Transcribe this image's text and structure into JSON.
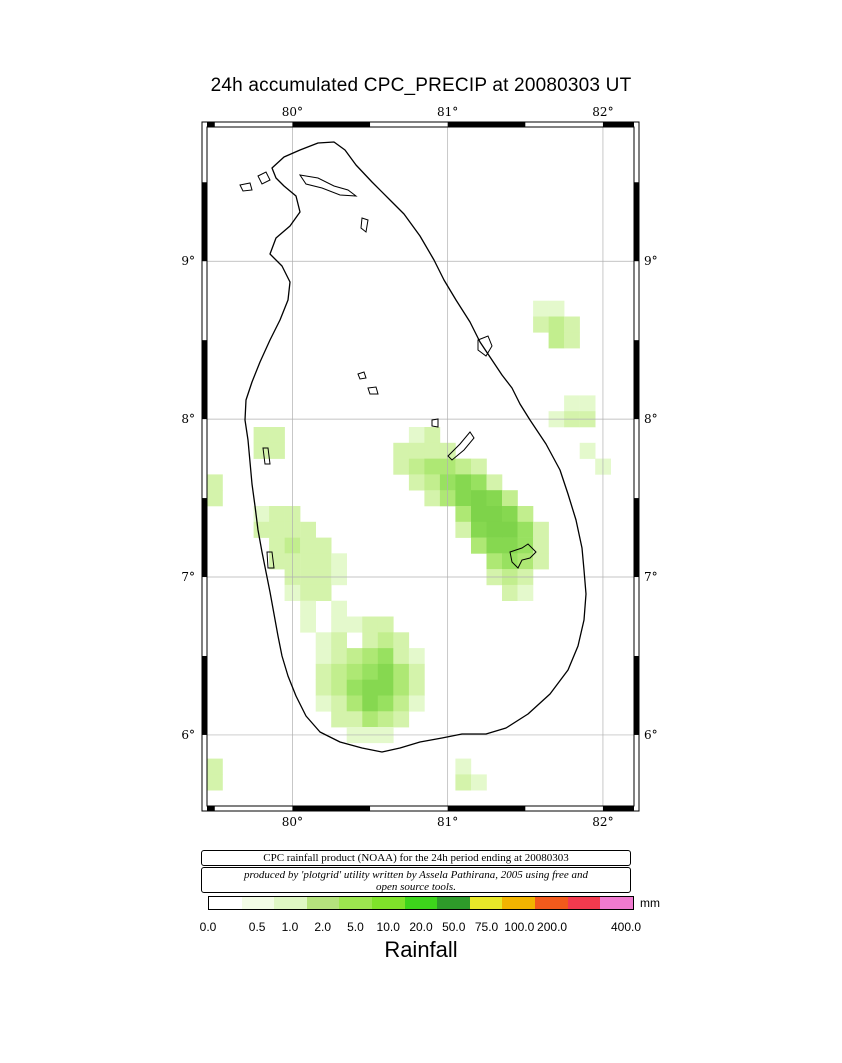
{
  "title": "24h accumulated CPC_PRECIP  at 20080303 UT",
  "axes": {
    "lon_labels": [
      "80°",
      "81°",
      "82°"
    ],
    "lat_labels": [
      "6°",
      "7°",
      "8°",
      "9°"
    ],
    "lon_values": [
      80,
      81,
      82
    ],
    "lat_values": [
      6,
      7,
      8,
      9
    ],
    "lon_range": [
      79.45,
      82.2
    ],
    "lat_range": [
      5.55,
      9.85
    ]
  },
  "info": {
    "line1": "CPC rainfall product (NOAA) for the 24h period ending at 20080303",
    "line2": "produced by 'plotgrid' utility written by Assela Pathirana, 2005 using free and open source tools."
  },
  "colorbar": {
    "unit": "mm",
    "title": "Rainfall",
    "ticks": [
      "0.0",
      "0.5",
      "1.0",
      "2.0",
      "5.0",
      "10.0",
      "20.0",
      "50.0",
      "75.0",
      "100.0",
      "200.0",
      "400.0"
    ],
    "colors": [
      "#ffffff",
      "#f3fce6",
      "#dff7c4",
      "#b5e37d",
      "#9ce64f",
      "#7fe22a",
      "#3dd41b",
      "#2e9a2a",
      "#e8e829",
      "#f2b400",
      "#f25a1c",
      "#f23a4e",
      "#f07ad0"
    ]
  },
  "chart_data": {
    "type": "heatmap",
    "title": "24h accumulated CPC_PRECIP  at 20080303 UT",
    "xlabel": "",
    "ylabel": "",
    "x_range_deg_lon": [
      79.45,
      82.2
    ],
    "y_range_deg_lat": [
      5.55,
      9.85
    ],
    "cell_size_deg": 0.1,
    "value_unit": "mm",
    "cells": [
      {
        "lon": 81.6,
        "lat": 8.7,
        "v": 0.8
      },
      {
        "lon": 81.7,
        "lat": 8.7,
        "v": 0.8
      },
      {
        "lon": 81.6,
        "lat": 8.6,
        "v": 1.5
      },
      {
        "lon": 81.7,
        "lat": 8.6,
        "v": 1.8
      },
      {
        "lon": 81.8,
        "lat": 8.6,
        "v": 1.2
      },
      {
        "lon": 81.7,
        "lat": 8.5,
        "v": 1.8
      },
      {
        "lon": 81.8,
        "lat": 8.5,
        "v": 1.5
      },
      {
        "lon": 81.8,
        "lat": 8.1,
        "v": 1.0
      },
      {
        "lon": 81.9,
        "lat": 8.1,
        "v": 1.0
      },
      {
        "lon": 81.7,
        "lat": 8.0,
        "v": 0.8
      },
      {
        "lon": 81.8,
        "lat": 8.0,
        "v": 1.2
      },
      {
        "lon": 81.9,
        "lat": 8.0,
        "v": 1.2
      },
      {
        "lon": 81.9,
        "lat": 7.8,
        "v": 1.0
      },
      {
        "lon": 82.0,
        "lat": 7.7,
        "v": 1.0
      },
      {
        "lon": 80.8,
        "lat": 7.9,
        "v": 1.0
      },
      {
        "lon": 80.9,
        "lat": 7.9,
        "v": 1.2
      },
      {
        "lon": 80.7,
        "lat": 7.8,
        "v": 1.2
      },
      {
        "lon": 80.8,
        "lat": 7.8,
        "v": 1.5
      },
      {
        "lon": 80.9,
        "lat": 7.8,
        "v": 1.5
      },
      {
        "lon": 81.0,
        "lat": 7.8,
        "v": 1.2
      },
      {
        "lon": 80.7,
        "lat": 7.7,
        "v": 1.2
      },
      {
        "lon": 80.8,
        "lat": 7.7,
        "v": 1.8
      },
      {
        "lon": 80.9,
        "lat": 7.7,
        "v": 2.0
      },
      {
        "lon": 81.0,
        "lat": 7.7,
        "v": 2.0
      },
      {
        "lon": 81.1,
        "lat": 7.7,
        "v": 1.8
      },
      {
        "lon": 81.2,
        "lat": 7.7,
        "v": 1.5
      },
      {
        "lon": 80.8,
        "lat": 7.6,
        "v": 1.5
      },
      {
        "lon": 80.9,
        "lat": 7.6,
        "v": 1.8
      },
      {
        "lon": 81.0,
        "lat": 7.6,
        "v": 2.5
      },
      {
        "lon": 81.1,
        "lat": 7.6,
        "v": 3.0
      },
      {
        "lon": 81.2,
        "lat": 7.6,
        "v": 2.5
      },
      {
        "lon": 81.3,
        "lat": 7.6,
        "v": 1.5
      },
      {
        "lon": 80.9,
        "lat": 7.5,
        "v": 1.5
      },
      {
        "lon": 81.0,
        "lat": 7.5,
        "v": 2.0
      },
      {
        "lon": 81.1,
        "lat": 7.5,
        "v": 3.0
      },
      {
        "lon": 81.2,
        "lat": 7.5,
        "v": 3.5
      },
      {
        "lon": 81.3,
        "lat": 7.5,
        "v": 3.0
      },
      {
        "lon": 81.4,
        "lat": 7.5,
        "v": 1.8
      },
      {
        "lon": 81.1,
        "lat": 7.4,
        "v": 2.0
      },
      {
        "lon": 81.2,
        "lat": 7.4,
        "v": 3.5
      },
      {
        "lon": 81.3,
        "lat": 7.4,
        "v": 3.5
      },
      {
        "lon": 81.4,
        "lat": 7.4,
        "v": 3.0
      },
      {
        "lon": 81.5,
        "lat": 7.4,
        "v": 1.8
      },
      {
        "lon": 81.1,
        "lat": 7.3,
        "v": 1.5
      },
      {
        "lon": 81.2,
        "lat": 7.3,
        "v": 3.0
      },
      {
        "lon": 81.3,
        "lat": 7.3,
        "v": 3.5
      },
      {
        "lon": 81.4,
        "lat": 7.3,
        "v": 3.5
      },
      {
        "lon": 81.5,
        "lat": 7.3,
        "v": 2.5
      },
      {
        "lon": 81.6,
        "lat": 7.3,
        "v": 1.5
      },
      {
        "lon": 81.2,
        "lat": 7.2,
        "v": 2.0
      },
      {
        "lon": 81.3,
        "lat": 7.2,
        "v": 3.0
      },
      {
        "lon": 81.4,
        "lat": 7.2,
        "v": 3.0
      },
      {
        "lon": 81.5,
        "lat": 7.2,
        "v": 2.5
      },
      {
        "lon": 81.6,
        "lat": 7.2,
        "v": 1.5
      },
      {
        "lon": 81.3,
        "lat": 7.1,
        "v": 2.0
      },
      {
        "lon": 81.4,
        "lat": 7.1,
        "v": 2.5
      },
      {
        "lon": 81.5,
        "lat": 7.1,
        "v": 2.0
      },
      {
        "lon": 81.6,
        "lat": 7.1,
        "v": 1.2
      },
      {
        "lon": 81.3,
        "lat": 7.0,
        "v": 1.5
      },
      {
        "lon": 81.4,
        "lat": 7.0,
        "v": 1.8
      },
      {
        "lon": 81.5,
        "lat": 7.0,
        "v": 1.5
      },
      {
        "lon": 81.4,
        "lat": 6.9,
        "v": 1.2
      },
      {
        "lon": 81.5,
        "lat": 6.9,
        "v": 1.0
      },
      {
        "lon": 79.8,
        "lat": 7.9,
        "v": 1.2
      },
      {
        "lon": 79.9,
        "lat": 7.9,
        "v": 1.2
      },
      {
        "lon": 79.8,
        "lat": 7.8,
        "v": 1.5
      },
      {
        "lon": 79.9,
        "lat": 7.8,
        "v": 1.2
      },
      {
        "lon": 79.5,
        "lat": 7.6,
        "v": 1.2
      },
      {
        "lon": 79.5,
        "lat": 7.5,
        "v": 1.2
      },
      {
        "lon": 79.8,
        "lat": 7.4,
        "v": 1.0
      },
      {
        "lon": 79.9,
        "lat": 7.4,
        "v": 1.2
      },
      {
        "lon": 80.0,
        "lat": 7.4,
        "v": 1.2
      },
      {
        "lon": 79.8,
        "lat": 7.3,
        "v": 1.2
      },
      {
        "lon": 79.9,
        "lat": 7.3,
        "v": 1.5
      },
      {
        "lon": 80.0,
        "lat": 7.3,
        "v": 1.5
      },
      {
        "lon": 80.1,
        "lat": 7.3,
        "v": 1.2
      },
      {
        "lon": 79.9,
        "lat": 7.2,
        "v": 1.5
      },
      {
        "lon": 80.0,
        "lat": 7.2,
        "v": 1.8
      },
      {
        "lon": 80.1,
        "lat": 7.2,
        "v": 1.5
      },
      {
        "lon": 80.2,
        "lat": 7.2,
        "v": 1.2
      },
      {
        "lon": 79.9,
        "lat": 7.1,
        "v": 1.2
      },
      {
        "lon": 80.0,
        "lat": 7.1,
        "v": 1.5
      },
      {
        "lon": 80.1,
        "lat": 7.1,
        "v": 1.5
      },
      {
        "lon": 80.2,
        "lat": 7.1,
        "v": 1.2
      },
      {
        "lon": 80.3,
        "lat": 7.1,
        "v": 1.0
      },
      {
        "lon": 80.0,
        "lat": 7.0,
        "v": 1.2
      },
      {
        "lon": 80.1,
        "lat": 7.0,
        "v": 1.5
      },
      {
        "lon": 80.2,
        "lat": 7.0,
        "v": 1.2
      },
      {
        "lon": 80.3,
        "lat": 7.0,
        "v": 1.0
      },
      {
        "lon": 80.0,
        "lat": 6.9,
        "v": 1.0
      },
      {
        "lon": 80.1,
        "lat": 6.9,
        "v": 1.2
      },
      {
        "lon": 80.2,
        "lat": 6.9,
        "v": 1.2
      },
      {
        "lon": 80.1,
        "lat": 6.8,
        "v": 1.0
      },
      {
        "lon": 80.3,
        "lat": 6.8,
        "v": 1.0
      },
      {
        "lon": 80.1,
        "lat": 6.7,
        "v": 0.8
      },
      {
        "lon": 80.3,
        "lat": 6.7,
        "v": 0.8
      },
      {
        "lon": 80.4,
        "lat": 6.7,
        "v": 1.0
      },
      {
        "lon": 80.5,
        "lat": 6.7,
        "v": 1.2
      },
      {
        "lon": 80.6,
        "lat": 6.7,
        "v": 1.2
      },
      {
        "lon": 80.2,
        "lat": 6.6,
        "v": 1.0
      },
      {
        "lon": 80.3,
        "lat": 6.6,
        "v": 1.2
      },
      {
        "lon": 80.5,
        "lat": 6.6,
        "v": 1.5
      },
      {
        "lon": 80.6,
        "lat": 6.6,
        "v": 1.8
      },
      {
        "lon": 80.7,
        "lat": 6.6,
        "v": 1.2
      },
      {
        "lon": 80.2,
        "lat": 6.5,
        "v": 1.0
      },
      {
        "lon": 80.3,
        "lat": 6.5,
        "v": 1.5
      },
      {
        "lon": 80.4,
        "lat": 6.5,
        "v": 1.8
      },
      {
        "lon": 80.5,
        "lat": 6.5,
        "v": 2.0
      },
      {
        "lon": 80.6,
        "lat": 6.5,
        "v": 2.5
      },
      {
        "lon": 80.7,
        "lat": 6.5,
        "v": 1.5
      },
      {
        "lon": 80.8,
        "lat": 6.5,
        "v": 1.0
      },
      {
        "lon": 80.2,
        "lat": 6.4,
        "v": 1.2
      },
      {
        "lon": 80.3,
        "lat": 6.4,
        "v": 1.8
      },
      {
        "lon": 80.4,
        "lat": 6.4,
        "v": 2.0
      },
      {
        "lon": 80.5,
        "lat": 6.4,
        "v": 2.5
      },
      {
        "lon": 80.6,
        "lat": 6.4,
        "v": 3.0
      },
      {
        "lon": 80.7,
        "lat": 6.4,
        "v": 2.0
      },
      {
        "lon": 80.8,
        "lat": 6.4,
        "v": 1.2
      },
      {
        "lon": 80.2,
        "lat": 6.3,
        "v": 1.2
      },
      {
        "lon": 80.3,
        "lat": 6.3,
        "v": 1.8
      },
      {
        "lon": 80.4,
        "lat": 6.3,
        "v": 2.5
      },
      {
        "lon": 80.5,
        "lat": 6.3,
        "v": 3.0
      },
      {
        "lon": 80.6,
        "lat": 6.3,
        "v": 3.0
      },
      {
        "lon": 80.7,
        "lat": 6.3,
        "v": 2.0
      },
      {
        "lon": 80.8,
        "lat": 6.3,
        "v": 1.2
      },
      {
        "lon": 80.2,
        "lat": 6.2,
        "v": 1.0
      },
      {
        "lon": 80.3,
        "lat": 6.2,
        "v": 1.5
      },
      {
        "lon": 80.4,
        "lat": 6.2,
        "v": 2.0
      },
      {
        "lon": 80.5,
        "lat": 6.2,
        "v": 3.0
      },
      {
        "lon": 80.6,
        "lat": 6.2,
        "v": 2.5
      },
      {
        "lon": 80.7,
        "lat": 6.2,
        "v": 1.8
      },
      {
        "lon": 80.8,
        "lat": 6.2,
        "v": 1.0
      },
      {
        "lon": 80.3,
        "lat": 6.1,
        "v": 1.2
      },
      {
        "lon": 80.4,
        "lat": 6.1,
        "v": 1.5
      },
      {
        "lon": 80.5,
        "lat": 6.1,
        "v": 2.0
      },
      {
        "lon": 80.6,
        "lat": 6.1,
        "v": 1.8
      },
      {
        "lon": 80.7,
        "lat": 6.1,
        "v": 1.2
      },
      {
        "lon": 80.4,
        "lat": 6.0,
        "v": 1.0
      },
      {
        "lon": 80.5,
        "lat": 6.0,
        "v": 1.0
      },
      {
        "lon": 80.6,
        "lat": 6.0,
        "v": 0.8
      },
      {
        "lon": 79.5,
        "lat": 5.8,
        "v": 1.2
      },
      {
        "lon": 79.5,
        "lat": 5.7,
        "v": 1.2
      },
      {
        "lon": 81.1,
        "lat": 5.8,
        "v": 1.0
      },
      {
        "lon": 81.1,
        "lat": 5.7,
        "v": 1.2
      },
      {
        "lon": 81.2,
        "lat": 5.7,
        "v": 1.0
      }
    ]
  }
}
